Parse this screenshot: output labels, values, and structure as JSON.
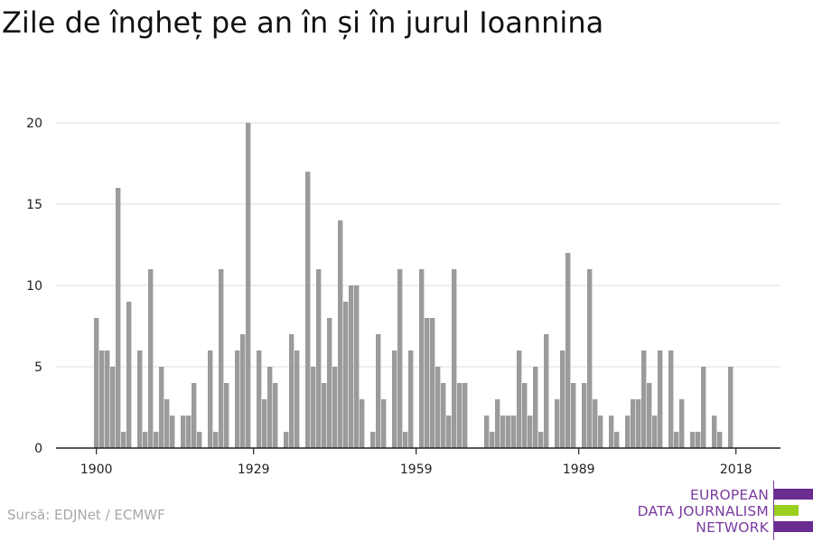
{
  "title": "Zile de îngheț pe an în și în jurul Ioannina",
  "source": "Sursă: EDJNet / ECMWF",
  "logo": {
    "lines": [
      "EUROPEAN",
      "DATA JOURNALISM",
      "NETWORK"
    ],
    "colors": {
      "text": "#7a3ba0",
      "block": "#6a2c91",
      "accent": "#9ad11f"
    }
  },
  "chart_data": {
    "type": "bar",
    "title": "Zile de îngheț pe an în și în jurul Ioannina",
    "xlabel": "",
    "ylabel": "",
    "x_start": 1900,
    "x_end": 2018,
    "xticks": [
      1900,
      1929,
      1959,
      1989,
      2018
    ],
    "yticks": [
      0,
      5,
      10,
      15,
      20
    ],
    "ylim": [
      0,
      20
    ],
    "grid": true,
    "bar_color": "#9b9b9b",
    "years": [
      1900,
      1901,
      1902,
      1903,
      1904,
      1905,
      1906,
      1907,
      1908,
      1909,
      1910,
      1911,
      1912,
      1913,
      1914,
      1915,
      1916,
      1917,
      1918,
      1919,
      1920,
      1921,
      1922,
      1923,
      1924,
      1925,
      1926,
      1927,
      1928,
      1929,
      1930,
      1931,
      1932,
      1933,
      1934,
      1935,
      1936,
      1937,
      1938,
      1939,
      1940,
      1941,
      1942,
      1943,
      1944,
      1945,
      1946,
      1947,
      1948,
      1949,
      1950,
      1951,
      1952,
      1953,
      1954,
      1955,
      1956,
      1957,
      1958,
      1959,
      1960,
      1961,
      1962,
      1963,
      1964,
      1965,
      1966,
      1967,
      1968,
      1969,
      1970,
      1971,
      1972,
      1973,
      1974,
      1975,
      1976,
      1977,
      1978,
      1979,
      1980,
      1981,
      1982,
      1983,
      1984,
      1985,
      1986,
      1987,
      1988,
      1989,
      1990,
      1991,
      1992,
      1993,
      1994,
      1995,
      1996,
      1997,
      1998,
      1999,
      2000,
      2001,
      2002,
      2003,
      2004,
      2005,
      2006,
      2007,
      2008,
      2009,
      2010,
      2011,
      2012,
      2013,
      2014,
      2015,
      2016,
      2017,
      2018,
      2019
    ],
    "values": [
      8,
      6,
      6,
      5,
      16,
      1,
      9,
      0,
      6,
      1,
      11,
      1,
      5,
      3,
      2,
      0,
      2,
      2,
      4,
      1,
      0,
      6,
      1,
      11,
      4,
      0,
      6,
      7,
      20,
      0,
      6,
      3,
      5,
      4,
      0,
      1,
      7,
      6,
      0,
      17,
      5,
      11,
      4,
      8,
      5,
      14,
      9,
      10,
      10,
      3,
      0,
      1,
      7,
      3,
      0,
      6,
      11,
      1,
      6,
      0,
      11,
      8,
      8,
      5,
      4,
      2,
      11,
      4,
      4,
      0,
      0,
      0,
      2,
      1,
      3,
      2,
      2,
      2,
      6,
      4,
      2,
      5,
      1,
      7,
      0,
      3,
      6,
      12,
      4,
      0,
      4,
      11,
      3,
      2,
      0,
      2,
      1,
      0,
      2,
      3,
      3,
      6,
      4,
      2,
      6,
      0,
      6,
      1,
      3,
      0,
      1,
      1,
      5,
      0,
      2,
      1,
      0,
      5,
      0,
      0
    ]
  }
}
